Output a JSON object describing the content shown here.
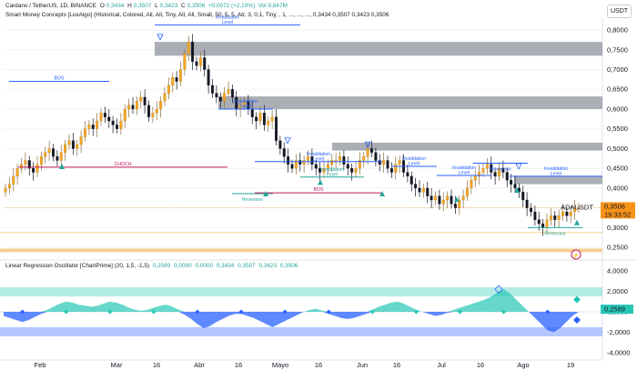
{
  "header": {
    "symbol_line": "Cardano / TetherUS, 1D, BINANCE",
    "ohlc": [
      {
        "k": "O",
        "v": "0,3434"
      },
      {
        "k": "H",
        "v": "0,3507"
      },
      {
        "k": "L",
        "v": "0,3423"
      },
      {
        "k": "C",
        "v": "0,3506"
      }
    ],
    "change": "+0,0072 (+2,10%)",
    "volume": "Vol 9,847M",
    "indicator1": "Smart Money Concepts [LuxAlgo] (Historical, Colored, All, All, Tiny, All, All, Small, 50, 5, 5, Atr, 3, 0,1, Tiny, , 1, ..., ..., ..., 0,3434 0,3507 0,3423 0,3506",
    "indicator2_name": "Linear Regression Oscillator [ChartPrime] (20, 1,5, -1,5)",
    "indicator2_values": [
      "0,2569",
      "0,0000",
      "0,0000",
      "0,3434",
      "0,3507",
      "0,3423",
      "0,3506"
    ],
    "currency_badge": "USDT"
  },
  "colors": {
    "up": "#26a69a",
    "up_fill": "#f5a623",
    "down": "#131722",
    "gray_zone": "#8f939c",
    "bos": "#2962ff",
    "choch_red": "#c2185b",
    "price_tag": "#f7931a",
    "osc_up": "#26c6b5",
    "osc_down": "#2962ff"
  },
  "chart_data": [
    {
      "type": "candlestick",
      "title": "",
      "ylim": [
        0.225,
        0.83
      ],
      "y_ticks": [
        "0,8000",
        "0,7500",
        "0,7000",
        "0,6500",
        "0,6000",
        "0,5500",
        "0,5000",
        "0,4500",
        "0,4000",
        "0,3500",
        "0,3000",
        "0,2500"
      ],
      "x_ticks": [
        "Feb",
        "Mar",
        "16",
        "Abr",
        "16",
        "Mayo",
        "16",
        "Jun",
        "16",
        "Jul",
        "16",
        "Ago",
        "19"
      ],
      "last_price": {
        "label": "ADAUSDT",
        "value": "0,3506",
        "countdown": "19:33:52"
      },
      "closes": [
        0.4,
        0.41,
        0.43,
        0.45,
        0.46,
        0.47,
        0.45,
        0.44,
        0.46,
        0.48,
        0.49,
        0.5,
        0.48,
        0.47,
        0.49,
        0.51,
        0.52,
        0.5,
        0.51,
        0.53,
        0.55,
        0.56,
        0.55,
        0.57,
        0.59,
        0.58,
        0.57,
        0.56,
        0.55,
        0.57,
        0.6,
        0.61,
        0.6,
        0.62,
        0.63,
        0.61,
        0.58,
        0.59,
        0.6,
        0.62,
        0.64,
        0.66,
        0.68,
        0.67,
        0.7,
        0.74,
        0.77,
        0.72,
        0.71,
        0.73,
        0.7,
        0.66,
        0.64,
        0.63,
        0.62,
        0.64,
        0.65,
        0.63,
        0.6,
        0.61,
        0.62,
        0.6,
        0.58,
        0.57,
        0.59,
        0.56,
        0.57,
        0.58,
        0.52,
        0.5,
        0.48,
        0.46,
        0.45,
        0.47,
        0.46,
        0.47,
        0.48,
        0.46,
        0.45,
        0.44,
        0.45,
        0.46,
        0.47,
        0.47,
        0.48,
        0.46,
        0.45,
        0.44,
        0.45,
        0.47,
        0.48,
        0.5,
        0.49,
        0.47,
        0.46,
        0.47,
        0.45,
        0.44,
        0.46,
        0.47,
        0.44,
        0.43,
        0.41,
        0.4,
        0.39,
        0.4,
        0.38,
        0.37,
        0.38,
        0.36,
        0.37,
        0.38,
        0.36,
        0.35,
        0.37,
        0.38,
        0.4,
        0.42,
        0.43,
        0.44,
        0.45,
        0.46,
        0.44,
        0.43,
        0.45,
        0.44,
        0.42,
        0.41,
        0.4,
        0.39,
        0.37,
        0.35,
        0.34,
        0.32,
        0.31,
        0.3,
        0.32,
        0.33,
        0.32,
        0.33,
        0.34,
        0.33,
        0.34,
        0.35,
        0.35
      ],
      "levels": [
        {
          "label": "Invalidation Level",
          "value": 0.813,
          "kind": "bos"
        },
        {
          "label": "BOS",
          "value": 0.67,
          "kind": "bos"
        },
        {
          "label": "Invalidation Level",
          "value": 0.6,
          "kind": "bos"
        },
        {
          "label": "CHOCH",
          "value": 0.453,
          "kind": "choch"
        },
        {
          "label": "Invalidation Level",
          "value": 0.467,
          "kind": "bos"
        },
        {
          "label": "Reversion",
          "value": 0.386,
          "kind": "up"
        },
        {
          "label": "BOS",
          "value": 0.388,
          "kind": "choch"
        },
        {
          "label": "Invalidation Level",
          "value": 0.428,
          "kind": "up"
        },
        {
          "label": "Invalidation Level",
          "value": 0.455,
          "kind": "bos"
        },
        {
          "label": "Invalidation Level",
          "value": 0.432,
          "kind": "bos"
        },
        {
          "label": "Reversion",
          "value": 0.463,
          "kind": "bos"
        },
        {
          "label": "Reversion",
          "value": 0.3,
          "kind": "up"
        },
        {
          "label": "Invalidation Level",
          "value": 0.43,
          "kind": "bos"
        }
      ],
      "zones": [
        {
          "top": 0.77,
          "bottom": 0.735
        },
        {
          "top": 0.632,
          "bottom": 0.6
        },
        {
          "top": 0.515,
          "bottom": 0.495
        },
        {
          "top": 0.43,
          "bottom": 0.41
        }
      ]
    },
    {
      "type": "area",
      "title": "",
      "ylim": [
        -4000,
        4000
      ],
      "y_ticks": [
        "4,0000",
        "2,0000",
        "0,0000",
        "-2,0000",
        "-4,0000"
      ],
      "thresholds": [
        1.5,
        -1.5
      ],
      "values": [
        -0.4,
        -0.6,
        -0.8,
        -1.0,
        -0.8,
        -0.5,
        -0.2,
        0.2,
        0.5,
        0.8,
        1.0,
        0.9,
        0.7,
        0.6,
        0.5,
        0.6,
        0.8,
        1.0,
        0.9,
        0.7,
        0.4,
        0.2,
        0.1,
        0.2,
        0.4,
        0.6,
        0.7,
        0.5,
        0.2,
        -0.3,
        -0.7,
        -1.2,
        -1.6,
        -1.4,
        -1.0,
        -0.7,
        -0.4,
        -0.2,
        -0.2,
        -0.4,
        -0.6,
        -0.9,
        -1.2,
        -1.5,
        -1.2,
        -0.9,
        -0.6,
        -0.3,
        0.0,
        0.2,
        0.3,
        0.1,
        -0.2,
        -0.4,
        -0.6,
        -0.7,
        -0.6,
        -0.4,
        -0.2,
        0.2,
        0.5,
        0.7,
        0.9,
        1.0,
        0.8,
        0.5,
        0.2,
        0.0,
        -0.2,
        -0.4,
        -0.3,
        -0.1,
        0.2,
        0.4,
        0.6,
        0.8,
        1.0,
        1.2,
        1.5,
        1.9,
        2.2,
        1.8,
        1.2,
        0.6,
        0.0,
        -0.6,
        -1.2,
        -1.8,
        -2.0,
        -1.6,
        -1.0,
        -0.4,
        0.0
      ],
      "current_value": "0,2569"
    }
  ]
}
